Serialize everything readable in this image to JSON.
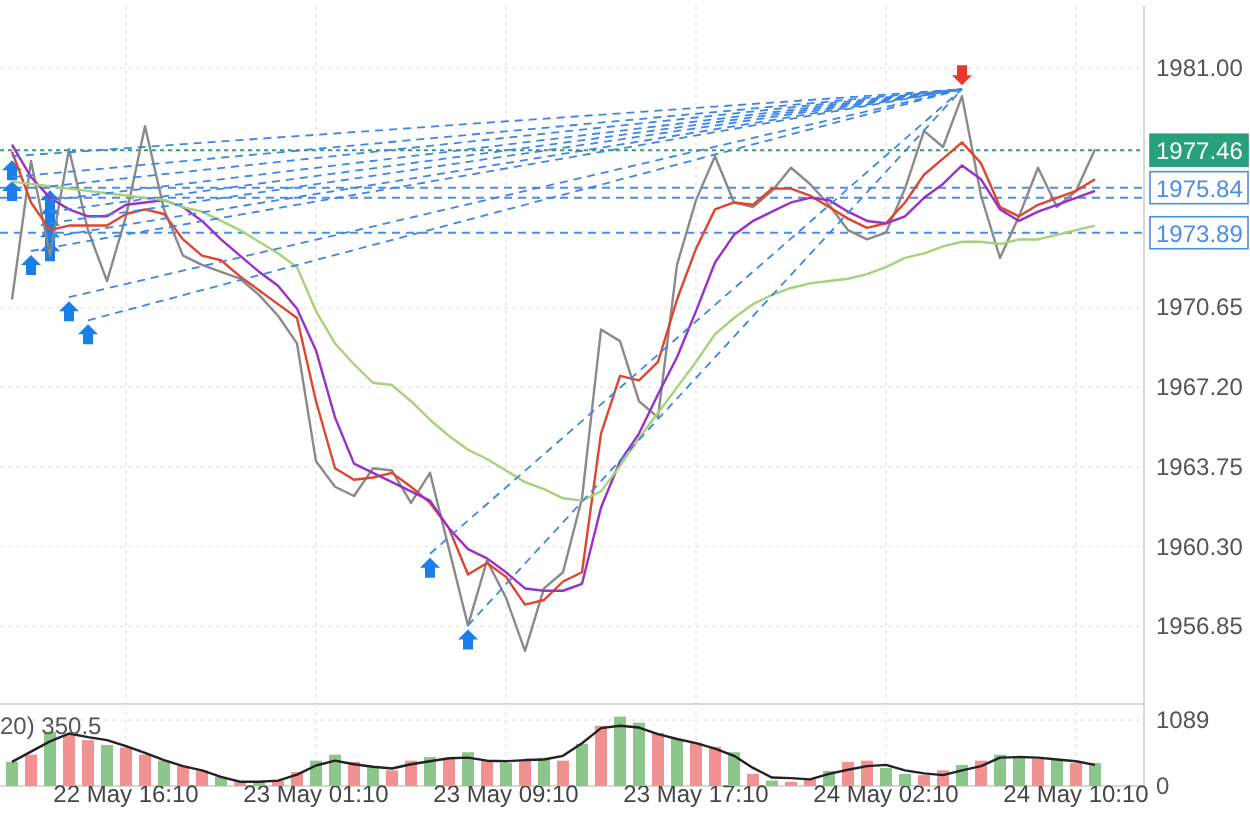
{
  "chart_data": [
    {
      "type": "line",
      "ylim": [
        1953.5,
        1983.7
      ],
      "categories": [
        null,
        null,
        null,
        null,
        null,
        null,
        null,
        null,
        null,
        null,
        null,
        null,
        null,
        null,
        null,
        null,
        null,
        null,
        null,
        null,
        null,
        null,
        null,
        null,
        null,
        null,
        null,
        null,
        null,
        null,
        null,
        null,
        null,
        null,
        null,
        null,
        null,
        null,
        null,
        null,
        null,
        null,
        null,
        null,
        null,
        null,
        null,
        null,
        null,
        null,
        null,
        null,
        null,
        null,
        null,
        null,
        null,
        null
      ],
      "yticks": [
        {
          "value": 1956.85,
          "label": "1956.85"
        },
        {
          "value": 1960.3,
          "label": "1960.30"
        },
        {
          "value": 1963.75,
          "label": "1963.75"
        },
        {
          "value": 1967.2,
          "label": "1967.20"
        },
        {
          "value": 1970.65,
          "label": "1970.65"
        },
        {
          "value": 1981,
          "label": "1981.00"
        }
      ],
      "grid": true,
      "ref_lines": [
        {
          "axis": "y",
          "value": 1977.46,
          "label": "1977.46",
          "color": "#26a17b",
          "line_style": "dotted"
        },
        {
          "axis": "y",
          "value": 1975.84,
          "label": "1975.84",
          "color": "#4a8fe7",
          "line_style": "dashed"
        },
        {
          "axis": "y",
          "value": 1975.4,
          "color": "#4a8fe7",
          "line_style": "dashed"
        },
        {
          "axis": "y",
          "value": 1973.89,
          "label": "1973.89",
          "color": "#4a8fe7",
          "line_style": "dashed"
        }
      ],
      "series": [
        {
          "color": "#8a8a8a",
          "values": [
            1971.0,
            1977.0,
            1972.9,
            1977.5,
            1974.0,
            1971.8,
            1974.6,
            1978.5,
            1974.9,
            1972.9,
            1972.5,
            1972.2,
            1971.9,
            1971.2,
            1970.3,
            1969.1,
            1964.0,
            1962.9,
            1962.5,
            1963.7,
            1963.6,
            1962.2,
            1963.5,
            1960.2,
            1956.9,
            1959.7,
            1958.1,
            1955.8,
            1958.5,
            1959.2,
            1962.4,
            1969.7,
            1969.2,
            1966.6,
            1965.9,
            1972.5,
            1975.3,
            1977.2,
            1975.2,
            1975.0,
            1975.7,
            1976.7,
            1976.0,
            1975.1,
            1974.0,
            1973.6,
            1973.9,
            1975.8,
            1978.3,
            1977.6,
            1979.8,
            1975.5,
            1972.8,
            1974.6,
            1976.7,
            1975.0,
            1975.7,
            1977.5
          ]
        },
        {
          "color": "#e0452f",
          "values": [
            1977.4,
            1975.2,
            1974.0,
            1974.2,
            1974.2,
            1974.2,
            1974.7,
            1974.9,
            1974.7,
            1973.6,
            1972.9,
            1972.7,
            1972.0,
            1971.4,
            1970.8,
            1970.2,
            1966.6,
            1963.7,
            1963.2,
            1963.3,
            1963.5,
            1962.9,
            1962.2,
            1961.1,
            1959.1,
            1959.6,
            1959.0,
            1957.8,
            1958.0,
            1958.8,
            1959.2,
            1965.2,
            1967.7,
            1967.5,
            1968.3,
            1971.0,
            1973.2,
            1974.9,
            1975.2,
            1975.1,
            1975.8,
            1975.8,
            1975.5,
            1975.0,
            1974.5,
            1974.1,
            1974.3,
            1975.2,
            1976.4,
            1977.1,
            1977.8,
            1976.9,
            1975.0,
            1974.6,
            1975.1,
            1975.4,
            1975.7,
            1976.2
          ]
        },
        {
          "color": "#9b30c8",
          "values": [
            1977.7,
            1976.3,
            1975.4,
            1974.9,
            1974.6,
            1974.6,
            1975.1,
            1975.2,
            1975.3,
            1975.0,
            1974.4,
            1973.6,
            1972.9,
            1972.2,
            1971.6,
            1970.6,
            1968.8,
            1965.9,
            1963.9,
            1963.5,
            1963.1,
            1962.7,
            1962.3,
            1961.1,
            1960.2,
            1959.8,
            1959.2,
            1958.5,
            1958.4,
            1958.4,
            1958.7,
            1962.0,
            1964.0,
            1965.2,
            1966.9,
            1968.5,
            1970.5,
            1972.6,
            1973.8,
            1974.4,
            1974.8,
            1975.2,
            1975.4,
            1975.3,
            1974.8,
            1974.4,
            1974.3,
            1974.6,
            1975.4,
            1976.0,
            1976.8,
            1976.2,
            1974.9,
            1974.4,
            1974.8,
            1975.1,
            1975.4,
            1975.7
          ]
        },
        {
          "color": "#a6d27a",
          "values": [
            1976.1,
            1976.0,
            1975.9,
            1975.8,
            1975.7,
            1975.6,
            1975.5,
            1975.4,
            1975.3,
            1975.0,
            1974.8,
            1974.4,
            1974.0,
            1973.5,
            1973.0,
            1972.4,
            1970.5,
            1969.1,
            1968.2,
            1967.4,
            1967.3,
            1966.6,
            1965.8,
            1965.1,
            1964.5,
            1964.1,
            1963.6,
            1963.1,
            1962.8,
            1962.4,
            1962.3,
            1962.7,
            1963.8,
            1965.0,
            1966.1,
            1967.2,
            1968.3,
            1969.5,
            1970.2,
            1970.8,
            1971.2,
            1971.5,
            1971.7,
            1971.8,
            1971.9,
            1972.1,
            1972.4,
            1972.8,
            1973.0,
            1973.3,
            1973.5,
            1973.5,
            1973.4,
            1973.6,
            1973.6,
            1973.8,
            1974.0,
            1974.2
          ]
        },
        {
          "type": "line",
          "color": "#3d86e6",
          "line_style": "dashed",
          "values": [
            1977.2,
            null,
            null,
            null,
            null,
            null,
            null,
            null,
            null,
            null,
            null,
            null,
            null,
            null,
            null,
            null,
            null,
            null,
            null,
            null,
            null,
            null,
            null,
            null,
            null,
            null,
            null,
            null,
            null,
            null,
            null,
            null,
            null,
            null,
            null,
            null,
            null,
            null,
            null,
            null,
            null,
            null,
            null,
            null,
            null,
            null,
            null,
            null,
            null,
            null,
            1980.1,
            null,
            null,
            null,
            null,
            null,
            null,
            null
          ]
        },
        {
          "type": "line",
          "color": "#3d86e6",
          "line_style": "dashed",
          "values": [
            1976.3,
            null,
            null,
            null,
            null,
            null,
            null,
            null,
            null,
            null,
            null,
            null,
            null,
            null,
            null,
            null,
            null,
            null,
            null,
            null,
            null,
            null,
            null,
            null,
            null,
            null,
            null,
            null,
            null,
            null,
            null,
            null,
            null,
            null,
            null,
            null,
            null,
            null,
            null,
            null,
            null,
            null,
            null,
            null,
            null,
            null,
            null,
            null,
            null,
            null,
            1980.1,
            null,
            null,
            null,
            null,
            null,
            null,
            null
          ]
        },
        {
          "type": "line",
          "color": "#3d86e6",
          "line_style": "dashed",
          "values": [
            null,
            1973.1,
            null,
            null,
            null,
            null,
            null,
            null,
            null,
            null,
            null,
            null,
            null,
            null,
            null,
            null,
            null,
            null,
            null,
            null,
            null,
            null,
            null,
            null,
            null,
            null,
            null,
            null,
            null,
            null,
            null,
            null,
            null,
            null,
            null,
            null,
            null,
            null,
            null,
            null,
            null,
            null,
            null,
            null,
            null,
            null,
            null,
            null,
            null,
            null,
            1980.1,
            null,
            null,
            null,
            null,
            null,
            null,
            null
          ]
        },
        {
          "type": "line",
          "color": "#3d86e6",
          "line_style": "dashed",
          "values": [
            null,
            null,
            1975.9,
            null,
            null,
            null,
            null,
            null,
            null,
            null,
            null,
            null,
            null,
            null,
            null,
            null,
            null,
            null,
            null,
            null,
            null,
            null,
            null,
            null,
            null,
            null,
            null,
            null,
            null,
            null,
            null,
            null,
            null,
            null,
            null,
            null,
            null,
            null,
            null,
            null,
            null,
            null,
            null,
            null,
            null,
            null,
            null,
            null,
            null,
            null,
            1980.1,
            null,
            null,
            null,
            null,
            null,
            null,
            null
          ]
        },
        {
          "type": "line",
          "color": "#3d86e6",
          "line_style": "dashed",
          "values": [
            null,
            null,
            1975.3,
            null,
            null,
            null,
            null,
            null,
            null,
            null,
            null,
            null,
            null,
            null,
            null,
            null,
            null,
            null,
            null,
            null,
            null,
            null,
            null,
            null,
            null,
            null,
            null,
            null,
            null,
            null,
            null,
            null,
            null,
            null,
            null,
            null,
            null,
            null,
            null,
            null,
            null,
            null,
            null,
            null,
            null,
            null,
            null,
            null,
            null,
            null,
            1980.1,
            null,
            null,
            null,
            null,
            null,
            null,
            null
          ]
        },
        {
          "type": "line",
          "color": "#3d86e6",
          "line_style": "dashed",
          "values": [
            null,
            null,
            1974.8,
            null,
            null,
            null,
            null,
            null,
            null,
            null,
            null,
            null,
            null,
            null,
            null,
            null,
            null,
            null,
            null,
            null,
            null,
            null,
            null,
            null,
            null,
            null,
            null,
            null,
            null,
            null,
            null,
            null,
            null,
            null,
            null,
            null,
            null,
            null,
            null,
            null,
            null,
            null,
            null,
            null,
            null,
            null,
            null,
            null,
            null,
            null,
            1980.1,
            null,
            null,
            null,
            null,
            null,
            null,
            null
          ]
        },
        {
          "type": "line",
          "color": "#3d86e6",
          "line_style": "dashed",
          "values": [
            null,
            null,
            1974.3,
            null,
            null,
            null,
            null,
            null,
            null,
            null,
            null,
            null,
            null,
            null,
            null,
            null,
            null,
            null,
            null,
            null,
            null,
            null,
            null,
            null,
            null,
            null,
            null,
            null,
            null,
            null,
            null,
            null,
            null,
            null,
            null,
            null,
            null,
            null,
            null,
            null,
            null,
            null,
            null,
            null,
            null,
            null,
            null,
            null,
            null,
            null,
            1980.1,
            null,
            null,
            null,
            null,
            null,
            null,
            null
          ]
        },
        {
          "type": "line",
          "color": "#3d86e6",
          "line_style": "dashed",
          "values": [
            null,
            null,
            1973.7,
            null,
            null,
            null,
            null,
            null,
            null,
            null,
            null,
            null,
            null,
            null,
            null,
            null,
            null,
            null,
            null,
            null,
            null,
            null,
            null,
            null,
            null,
            null,
            null,
            null,
            null,
            null,
            null,
            null,
            null,
            null,
            null,
            null,
            null,
            null,
            null,
            null,
            null,
            null,
            null,
            null,
            null,
            null,
            null,
            null,
            null,
            null,
            1980.1,
            null,
            null,
            null,
            null,
            null,
            null,
            null
          ]
        },
        {
          "type": "line",
          "color": "#3d86e6",
          "line_style": "dashed",
          "values": [
            null,
            null,
            null,
            1971.1,
            null,
            null,
            null,
            null,
            null,
            null,
            null,
            null,
            null,
            null,
            null,
            null,
            null,
            null,
            null,
            null,
            null,
            null,
            null,
            null,
            null,
            null,
            null,
            null,
            null,
            null,
            null,
            null,
            null,
            null,
            null,
            null,
            null,
            null,
            null,
            null,
            null,
            null,
            null,
            null,
            null,
            null,
            null,
            null,
            null,
            null,
            1980.1,
            null,
            null,
            null,
            null,
            null,
            null,
            null
          ]
        },
        {
          "type": "line",
          "color": "#3d86e6",
          "line_style": "dashed",
          "values": [
            null,
            null,
            null,
            null,
            1970.1,
            null,
            null,
            null,
            null,
            null,
            null,
            null,
            null,
            null,
            null,
            null,
            null,
            null,
            null,
            null,
            null,
            null,
            null,
            null,
            null,
            null,
            null,
            null,
            null,
            null,
            null,
            null,
            null,
            null,
            null,
            null,
            null,
            null,
            null,
            null,
            null,
            null,
            null,
            null,
            null,
            null,
            null,
            null,
            null,
            null,
            1980.1,
            null,
            null,
            null,
            null,
            null,
            null,
            null
          ]
        },
        {
          "type": "line",
          "color": "#3d86e6",
          "line_style": "dashed",
          "values": [
            null,
            null,
            null,
            null,
            null,
            null,
            null,
            null,
            null,
            null,
            null,
            null,
            null,
            null,
            null,
            null,
            null,
            null,
            null,
            null,
            null,
            null,
            1960.0,
            null,
            null,
            null,
            null,
            null,
            null,
            null,
            null,
            null,
            null,
            null,
            null,
            null,
            null,
            null,
            null,
            null,
            null,
            null,
            null,
            null,
            null,
            null,
            null,
            null,
            null,
            null,
            1980.1,
            null,
            null,
            null,
            null,
            null,
            null,
            null
          ]
        },
        {
          "type": "line",
          "color": "#3d86e6",
          "line_style": "dashed",
          "values": [
            null,
            null,
            null,
            null,
            null,
            null,
            null,
            null,
            null,
            null,
            null,
            null,
            null,
            null,
            null,
            null,
            null,
            null,
            null,
            null,
            null,
            null,
            null,
            null,
            1956.9,
            null,
            null,
            null,
            null,
            null,
            null,
            null,
            null,
            null,
            null,
            null,
            null,
            null,
            null,
            null,
            null,
            null,
            null,
            null,
            null,
            null,
            null,
            null,
            null,
            null,
            1980.1,
            null,
            null,
            null,
            null,
            null,
            null,
            null
          ]
        }
      ]
    },
    {
      "type": "bar",
      "title": "20) 350.5",
      "ylim": [
        0,
        1360
      ],
      "categories": [
        null,
        null,
        null,
        null,
        null,
        null,
        "22 May 16:10",
        null,
        null,
        null,
        null,
        null,
        null,
        null,
        null,
        null,
        "23 May 01:10",
        null,
        null,
        null,
        null,
        null,
        null,
        null,
        null,
        null,
        "23 May 09:10",
        null,
        null,
        null,
        null,
        null,
        null,
        null,
        null,
        null,
        "23 May 17:10",
        null,
        null,
        null,
        null,
        null,
        null,
        null,
        null,
        null,
        "24 May 02:10",
        null,
        null,
        null,
        null,
        null,
        null,
        null,
        null,
        null,
        "24 May 10:10",
        null
      ],
      "yticks": [
        0,
        1089
      ],
      "grid": true,
      "series": [
        {
          "values": [
            400,
            520,
            900,
            850,
            760,
            680,
            640,
            520,
            420,
            330,
            260,
            150,
            60,
            80,
            90,
            230,
            420,
            520,
            400,
            330,
            260,
            420,
            480,
            450,
            560,
            420,
            380,
            430,
            470,
            420,
            700,
            1000,
            1150,
            1050,
            880,
            780,
            720,
            650,
            560,
            200,
            90,
            70,
            110,
            250,
            400,
            420,
            300,
            200,
            180,
            260,
            350,
            420,
            520,
            480,
            450,
            430,
            380,
            380
          ],
          "colors": [
            "#8cc68c",
            "#f29191",
            "#8cc68c",
            "#f29191",
            "#f29191",
            "#8cc68c",
            "#f29191",
            "#f29191",
            "#8cc68c",
            "#f29191",
            "#f29191",
            "#8cc68c",
            "#f29191",
            "#8cc68c",
            "#f29191",
            "#f29191",
            "#8cc68c",
            "#8cc68c",
            "#f29191",
            "#8cc68c",
            "#f29191",
            "#f29191",
            "#8cc68c",
            "#f29191",
            "#8cc68c",
            "#f29191",
            "#8cc68c",
            "#f29191",
            "#8cc68c",
            "#f29191",
            "#8cc68c",
            "#f29191",
            "#8cc68c",
            "#8cc68c",
            "#f29191",
            "#8cc68c",
            "#f29191",
            "#f29191",
            "#8cc68c",
            "#f29191",
            "#8cc68c",
            "#f29191",
            "#f29191",
            "#8cc68c",
            "#f29191",
            "#f29191",
            "#8cc68c",
            "#8cc68c",
            "#f29191",
            "#f29191",
            "#8cc68c",
            "#f29191",
            "#8cc68c",
            "#8cc68c",
            "#f29191",
            "#8cc68c",
            "#f29191",
            "#8cc68c"
          ]
        },
        {
          "type": "line",
          "color": "#222222",
          "values": [
            400,
            570,
            740,
            870,
            810,
            760,
            660,
            550,
            430,
            330,
            260,
            150,
            70,
            70,
            90,
            190,
            340,
            420,
            360,
            320,
            290,
            360,
            410,
            460,
            470,
            420,
            410,
            430,
            440,
            500,
            710,
            960,
            1000,
            970,
            860,
            780,
            710,
            620,
            500,
            300,
            140,
            130,
            110,
            200,
            270,
            330,
            350,
            260,
            210,
            180,
            260,
            330,
            470,
            480,
            470,
            440,
            410,
            350
          ]
        }
      ]
    }
  ]
}
